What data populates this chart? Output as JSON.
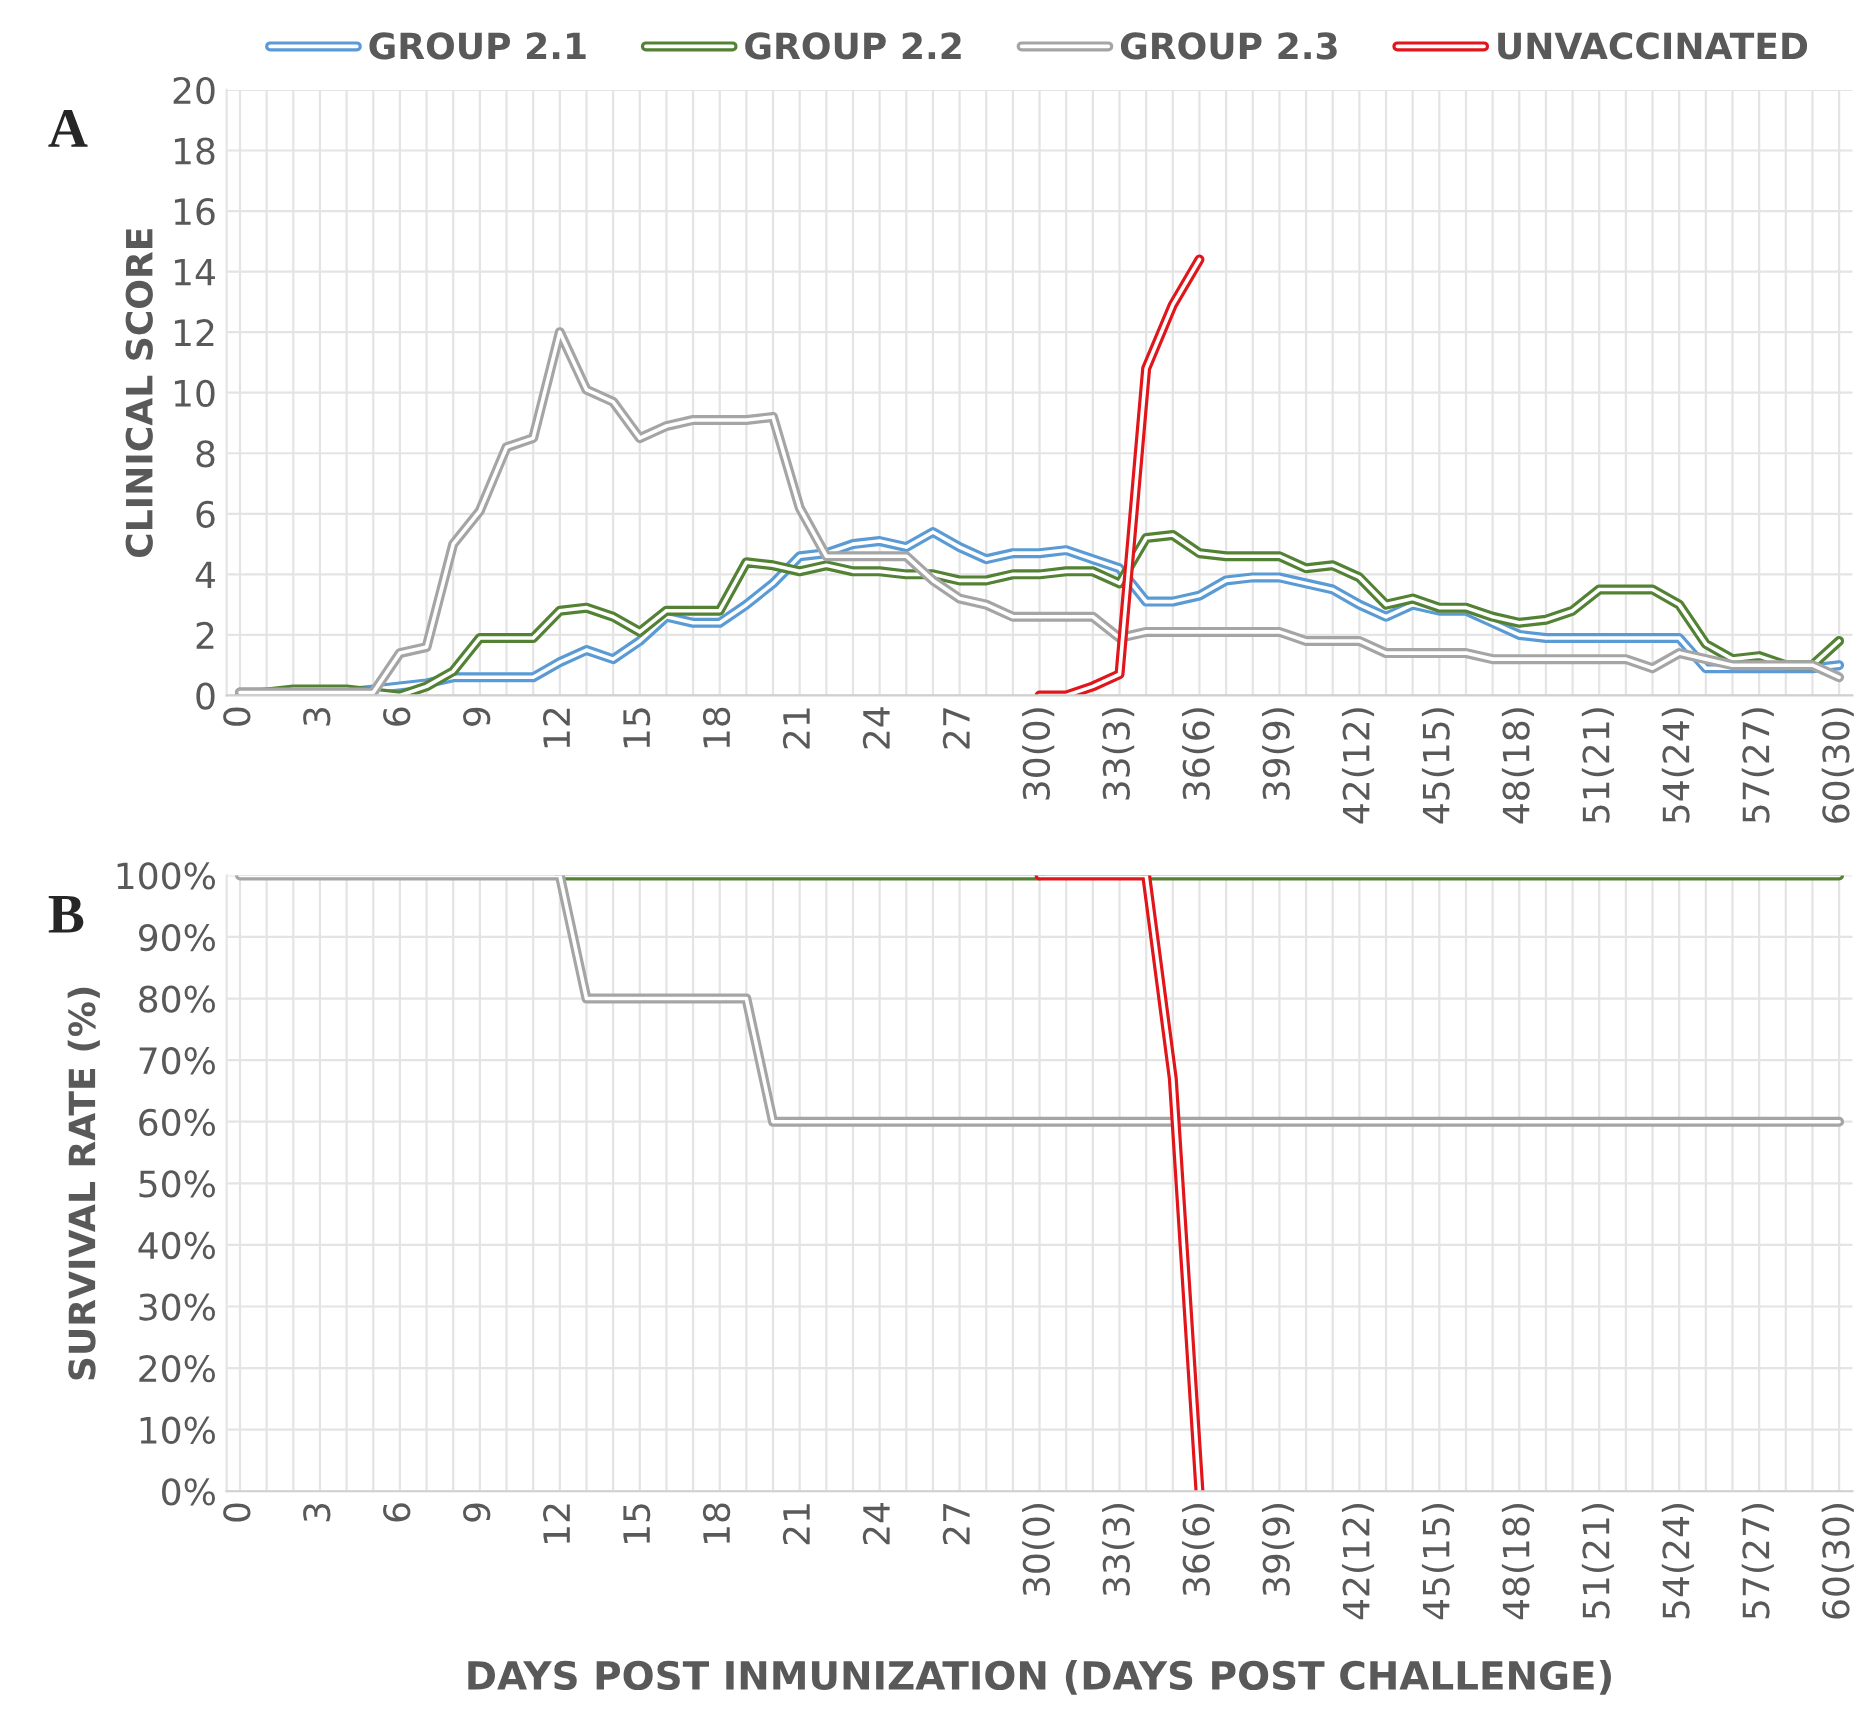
{
  "chart_data": [
    {
      "type": "line",
      "ylabel": "CLINICAL SCORE",
      "annotations": [
        "A"
      ],
      "legend": "top",
      "grid": true,
      "line_style": "solid",
      "marker": "none",
      "categories": [
        "0",
        null,
        null,
        "3",
        null,
        null,
        "6",
        null,
        null,
        "9",
        null,
        null,
        "12",
        null,
        null,
        "15",
        null,
        null,
        "18",
        null,
        null,
        "21",
        null,
        null,
        "24",
        null,
        null,
        "27",
        null,
        null,
        "30(0)",
        null,
        null,
        "33(3)",
        null,
        null,
        "36(6)",
        null,
        null,
        "39(9)",
        null,
        null,
        "42(12)",
        null,
        null,
        "45(15)",
        null,
        null,
        "48(18)",
        null,
        null,
        "51(21)",
        null,
        null,
        "54(24)",
        null,
        null,
        "57(27)",
        null,
        null,
        "60(30)"
      ],
      "ylim": [
        0,
        20
      ],
      "yticks": [
        0,
        2,
        4,
        6,
        8,
        10,
        12,
        14,
        16,
        18,
        20
      ],
      "series": [
        {
          "name": "GROUP 2.1",
          "color": "#5b9bd5",
          "values": [
            0.1,
            0.1,
            0.1,
            0.1,
            0.1,
            0.2,
            0.3,
            0.4,
            0.6,
            0.6,
            0.6,
            0.6,
            1.1,
            1.5,
            1.2,
            1.8,
            2.6,
            2.4,
            2.4,
            3.0,
            3.7,
            4.6,
            4.7,
            5.0,
            5.1,
            4.9,
            5.4,
            4.9,
            4.5,
            4.7,
            4.7,
            4.8,
            4.5,
            4.2,
            3.1,
            3.1,
            3.3,
            3.8,
            3.9,
            3.9,
            3.7,
            3.5,
            3.0,
            2.6,
            3.0,
            2.8,
            2.8,
            2.4,
            2.0,
            1.9,
            1.9,
            1.9,
            1.9,
            1.9,
            1.9,
            0.9,
            0.9,
            0.9,
            0.9,
            0.9,
            1.0
          ]
        },
        {
          "name": "GROUP 2.2",
          "color": "#548235",
          "values": [
            0,
            0.1,
            0.2,
            0.2,
            0.2,
            0.1,
            0,
            0.3,
            0.8,
            1.9,
            1.9,
            1.9,
            2.8,
            2.9,
            2.6,
            2.1,
            2.8,
            2.8,
            2.8,
            4.4,
            4.3,
            4.1,
            4.3,
            4.1,
            4.1,
            4.0,
            4.0,
            3.8,
            3.8,
            4.0,
            4.0,
            4.1,
            4.1,
            3.7,
            5.2,
            5.3,
            4.7,
            4.6,
            4.6,
            4.6,
            4.2,
            4.3,
            3.9,
            3.0,
            3.2,
            2.9,
            2.9,
            2.6,
            2.4,
            2.5,
            2.8,
            3.5,
            3.5,
            3.5,
            3.0,
            1.7,
            1.2,
            1.3,
            1.0,
            1.0,
            1.8
          ]
        },
        {
          "name": "GROUP 2.3",
          "color": "#a5a5a5",
          "values": [
            0.1,
            0.1,
            0.1,
            0.1,
            0.1,
            0.1,
            1.4,
            1.6,
            5.0,
            6.1,
            8.2,
            8.5,
            12.0,
            10.1,
            9.7,
            8.5,
            8.9,
            9.1,
            9.1,
            9.1,
            9.2,
            6.2,
            4.6,
            4.6,
            4.6,
            4.6,
            3.8,
            3.2,
            3.0,
            2.6,
            2.6,
            2.6,
            2.6,
            1.9,
            2.1,
            2.1,
            2.1,
            2.1,
            2.1,
            2.1,
            1.8,
            1.8,
            1.8,
            1.4,
            1.4,
            1.4,
            1.4,
            1.2,
            1.2,
            1.2,
            1.2,
            1.2,
            1.2,
            0.9,
            1.4,
            1.2,
            1.0,
            1.0,
            1.0,
            1.0,
            0.6
          ]
        },
        {
          "name": "UNVACCINATED",
          "color": "#e0161b",
          "values": [
            null,
            null,
            null,
            null,
            null,
            null,
            null,
            null,
            null,
            null,
            null,
            null,
            null,
            null,
            null,
            null,
            null,
            null,
            null,
            null,
            null,
            null,
            null,
            null,
            null,
            null,
            null,
            null,
            null,
            null,
            0,
            0,
            0.3,
            0.7,
            10.8,
            12.9,
            14.4,
            null,
            null,
            null,
            null,
            null,
            null,
            null,
            null,
            null,
            null,
            null,
            null,
            null,
            null,
            null,
            null,
            null,
            null,
            null,
            null,
            null,
            null,
            null,
            null
          ]
        }
      ]
    },
    {
      "type": "line",
      "ylabel": "SURVIVAL RATE (%)",
      "xlabel": "DAYS POST INMUNIZATION (DAYS POST CHALLENGE)",
      "annotations": [
        "B"
      ],
      "grid": true,
      "line_style": "solid",
      "marker": "none",
      "categories": [
        "0",
        null,
        null,
        "3",
        null,
        null,
        "6",
        null,
        null,
        "9",
        null,
        null,
        "12",
        null,
        null,
        "15",
        null,
        null,
        "18",
        null,
        null,
        "21",
        null,
        null,
        "24",
        null,
        null,
        "27",
        null,
        null,
        "30(0)",
        null,
        null,
        "33(3)",
        null,
        null,
        "36(6)",
        null,
        null,
        "39(9)",
        null,
        null,
        "42(12)",
        null,
        null,
        "45(15)",
        null,
        null,
        "48(18)",
        null,
        null,
        "51(21)",
        null,
        null,
        "54(24)",
        null,
        null,
        "57(27)",
        null,
        null,
        "60(30)"
      ],
      "ylim": [
        0,
        100
      ],
      "yticks": [
        {
          "value": 0,
          "label": "0%"
        },
        {
          "value": 10,
          "label": "10%"
        },
        {
          "value": 20,
          "label": "20%"
        },
        {
          "value": 30,
          "label": "30%"
        },
        {
          "value": 40,
          "label": "40%"
        },
        {
          "value": 50,
          "label": "50%"
        },
        {
          "value": 60,
          "label": "60%"
        },
        {
          "value": 70,
          "label": "70%"
        },
        {
          "value": 80,
          "label": "80%"
        },
        {
          "value": 90,
          "label": "90%"
        },
        {
          "value": 100,
          "label": "100%"
        }
      ],
      "series": [
        {
          "color": "#548235",
          "values": [
            null,
            null,
            null,
            null,
            null,
            null,
            null,
            null,
            null,
            null,
            null,
            null,
            100,
            100,
            100,
            100,
            100,
            100,
            100,
            100,
            100,
            100,
            100,
            100,
            100,
            100,
            100,
            100,
            100,
            100,
            100,
            null,
            null,
            null,
            100,
            100,
            100,
            100,
            100,
            100,
            100,
            100,
            100,
            100,
            100,
            100,
            100,
            100,
            100,
            100,
            100,
            100,
            100,
            100,
            100,
            100,
            100,
            100,
            100,
            100,
            100
          ]
        },
        {
          "color": "#a5a5a5",
          "values": [
            100,
            100,
            100,
            100,
            100,
            100,
            100,
            100,
            100,
            100,
            100,
            100,
            100,
            80,
            80,
            80,
            80,
            80,
            80,
            80,
            60,
            60,
            60,
            60,
            60,
            60,
            60,
            60,
            60,
            60,
            60,
            60,
            60,
            60,
            60,
            60,
            60,
            60,
            60,
            60,
            60,
            60,
            60,
            60,
            60,
            60,
            60,
            60,
            60,
            60,
            60,
            60,
            60,
            60,
            60,
            60,
            60,
            60,
            60,
            60,
            60
          ]
        },
        {
          "color": "#e0161b",
          "values": [
            null,
            null,
            null,
            null,
            null,
            null,
            null,
            null,
            null,
            null,
            null,
            null,
            null,
            null,
            null,
            null,
            null,
            null,
            null,
            null,
            null,
            null,
            null,
            null,
            null,
            null,
            null,
            null,
            null,
            null,
            100,
            100,
            100,
            100,
            100,
            67,
            0,
            null,
            null,
            null,
            null,
            null,
            null,
            null,
            null,
            null,
            null,
            null,
            null,
            null,
            null,
            null,
            null,
            null,
            null,
            null,
            null,
            null,
            null,
            null,
            null
          ]
        }
      ]
    }
  ]
}
